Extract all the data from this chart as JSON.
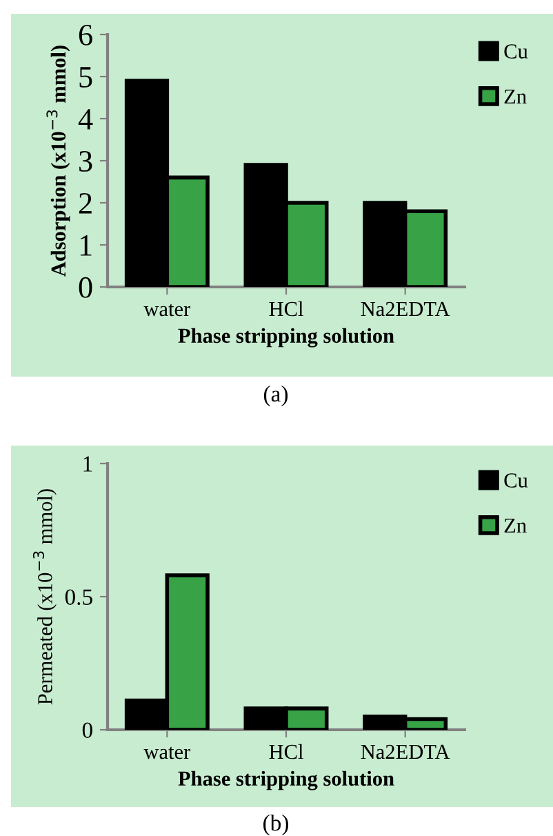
{
  "chart_data": [
    {
      "type": "bar",
      "categories": [
        "water",
        "HCl",
        "Na2EDTA"
      ],
      "xlabel": "Phase stripping solution",
      "ylabel": "Adsorption (x10$^{−3}$ mmol)",
      "ylim": [
        0,
        6
      ],
      "yticks": [
        0,
        1,
        2,
        3,
        4,
        5,
        6
      ],
      "legend": "top right",
      "grid": false,
      "annotations": [
        "(a)"
      ],
      "series": [
        {
          "name": "Cu",
          "color": "#000000",
          "values": [
            4.9,
            2.9,
            2.0
          ]
        },
        {
          "name": "Zn",
          "color": "#37a346",
          "values": [
            2.6,
            2.0,
            1.8
          ]
        }
      ]
    },
    {
      "type": "bar",
      "categories": [
        "water",
        "HCl",
        "Na2EDTA"
      ],
      "xlabel": "Phase stripping solution",
      "ylabel": "Permeated (x10$^{−3}$ mmol)",
      "ylim": [
        0,
        1
      ],
      "yticks": [
        0,
        0.5,
        1
      ],
      "legend": "top right",
      "grid": false,
      "annotations": [
        "(b)"
      ],
      "series": [
        {
          "name": "Cu",
          "color": "#000000",
          "values": [
            0.11,
            0.08,
            0.05
          ]
        },
        {
          "name": "Zn",
          "color": "#37a346",
          "values": [
            0.58,
            0.08,
            0.04
          ]
        }
      ]
    }
  ]
}
